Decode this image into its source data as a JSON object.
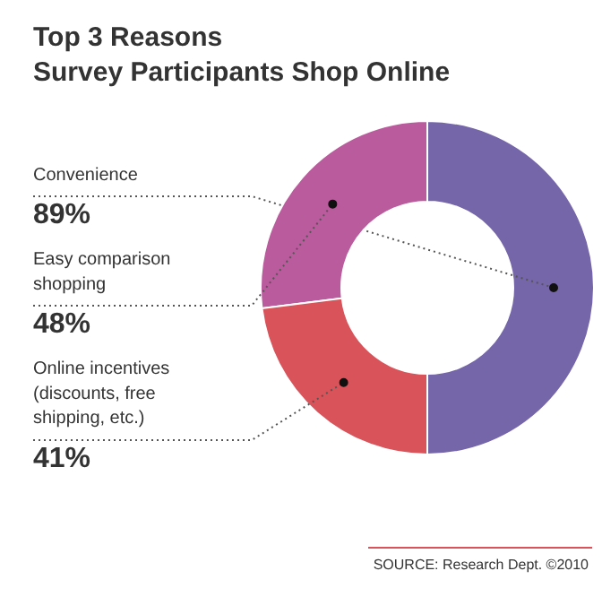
{
  "chart_data": {
    "type": "donut",
    "title": "Top 3 Reasons\nSurvey Participants Shop Online",
    "categories": [
      "Convenience",
      "Easy comparison\nshopping",
      "Online incentives\n(discounts, free\nshipping, etc.)"
    ],
    "values": [
      89,
      48,
      41
    ],
    "colors": [
      "#7566a9",
      "#b95b9c",
      "#d9535a"
    ],
    "value_labels": [
      "89%",
      "48%",
      "41%"
    ],
    "annotations": [
      "SOURCE: Research Dept. ©2010"
    ]
  }
}
